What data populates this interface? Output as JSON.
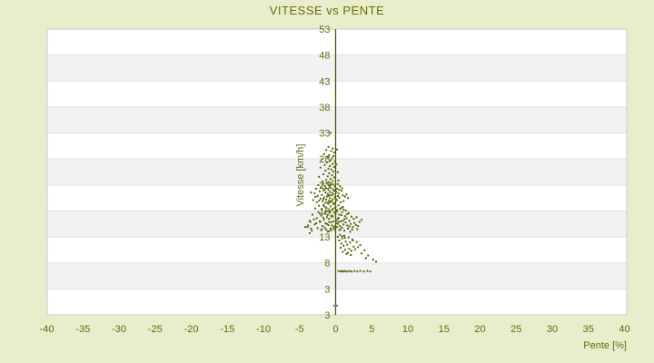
{
  "colors": {
    "background": "#e9edcb",
    "title_text": "#667104",
    "tick_text": "#5f6b10",
    "axis_line": "#4c5906",
    "point": "#5a660d",
    "teal_point": "#3d8f99",
    "band_light": "#ffffff",
    "band_dark": "#f2f2f2",
    "band_line": "#e2e2e2",
    "plot_border": "#d6dade"
  },
  "chart_data": {
    "type": "scatter",
    "title": "VITESSE vs PENTE",
    "xlabel": "Pente [%]",
    "ylabel": "Vitesse [km/h]",
    "xlim": [
      -40,
      40
    ],
    "ylim": [
      -2,
      53
    ],
    "grid": "horizontal-bands",
    "legend": "none",
    "x_ticks": [
      -40,
      -35,
      -30,
      -25,
      -20,
      -15,
      -10,
      -5,
      0,
      5,
      10,
      15,
      20,
      25,
      30,
      35,
      40
    ],
    "y_tick_labels": [
      "53",
      "48",
      "43",
      "38",
      "33",
      "28",
      "23",
      "18",
      "13",
      "8",
      "3",
      "3"
    ],
    "band_fill_order": [
      "#ffffff",
      "#f2f2f2"
    ],
    "series": [
      {
        "name": "vitesse-vs-pente",
        "color": "#5a660d",
        "marker": "square-2px",
        "points": [
          [
            -0.7,
            33.1
          ],
          [
            -1.0,
            30.4
          ],
          [
            -0.4,
            30.1
          ],
          [
            -1.3,
            29.8
          ],
          [
            -0.6,
            29.6
          ],
          [
            -0.2,
            29.3
          ],
          [
            -1.6,
            29.0
          ],
          [
            -0.9,
            28.8
          ],
          [
            -0.3,
            28.6
          ],
          [
            -1.1,
            28.4
          ],
          [
            -0.5,
            28.2
          ],
          [
            -1.9,
            28.0
          ],
          [
            -0.7,
            27.8
          ],
          [
            -0.1,
            27.6
          ],
          [
            -1.2,
            27.4
          ],
          [
            -0.4,
            27.1
          ],
          [
            -1.5,
            26.9
          ],
          [
            -0.8,
            26.7
          ],
          [
            -0.2,
            26.5
          ],
          [
            -1.0,
            26.2
          ],
          [
            -0.6,
            26.0
          ],
          [
            -1.4,
            25.8
          ],
          [
            -0.3,
            25.6
          ],
          [
            -0.9,
            25.3
          ],
          [
            -1.7,
            25.1
          ],
          [
            -0.5,
            24.9
          ],
          [
            -1.1,
            24.7
          ],
          [
            -0.2,
            24.5
          ],
          [
            -0.7,
            24.2
          ],
          [
            -1.3,
            24.0
          ],
          [
            -0.4,
            23.8
          ],
          [
            -0.9,
            23.6
          ],
          [
            0.2,
            29.9
          ],
          [
            0.1,
            27.0
          ],
          [
            0.3,
            25.5
          ],
          [
            -2.1,
            26.4
          ],
          [
            -2.3,
            24.6
          ],
          [
            0.4,
            23.9
          ],
          [
            -1.8,
            23.7
          ],
          [
            -1.2,
            23.4
          ],
          [
            -0.6,
            23.3
          ],
          [
            -1.8,
            23.2
          ],
          [
            -0.3,
            23.1
          ],
          [
            -2.4,
            23.0
          ],
          [
            -0.9,
            22.9
          ],
          [
            -1.5,
            22.8
          ],
          [
            -0.1,
            22.7
          ],
          [
            -2.0,
            22.6
          ],
          [
            -0.7,
            22.5
          ],
          [
            -1.3,
            22.4
          ],
          [
            -2.7,
            22.3
          ],
          [
            -0.4,
            22.2
          ],
          [
            -1.0,
            22.1
          ],
          [
            -1.7,
            22.0
          ],
          [
            -0.2,
            21.9
          ],
          [
            -2.2,
            21.8
          ],
          [
            -0.8,
            21.7
          ],
          [
            -1.4,
            21.6
          ],
          [
            -0.5,
            21.5
          ],
          [
            -2.9,
            21.4
          ],
          [
            -1.1,
            21.3
          ],
          [
            -0.3,
            21.2
          ],
          [
            -1.9,
            21.1
          ],
          [
            -0.6,
            21.0
          ],
          [
            -2.5,
            20.9
          ],
          [
            -1.2,
            20.8
          ],
          [
            -0.1,
            20.7
          ],
          [
            -1.6,
            20.6
          ],
          [
            -0.8,
            20.5
          ],
          [
            -2.1,
            20.4
          ],
          [
            -0.4,
            20.3
          ],
          [
            -1.3,
            20.2
          ],
          [
            -3.1,
            20.1
          ],
          [
            -0.9,
            20.0
          ],
          [
            -1.8,
            19.9
          ],
          [
            -0.5,
            19.8
          ],
          [
            -2.6,
            19.7
          ],
          [
            -1.1,
            19.6
          ],
          [
            -0.2,
            19.5
          ],
          [
            0.3,
            23.2
          ],
          [
            0.6,
            22.8
          ],
          [
            0.2,
            22.3
          ],
          [
            0.8,
            21.9
          ],
          [
            0.4,
            21.4
          ],
          [
            1.0,
            21.0
          ],
          [
            0.5,
            20.6
          ],
          [
            0.2,
            20.1
          ],
          [
            0.7,
            19.7
          ],
          [
            1.3,
            20.8
          ],
          [
            1.1,
            19.9
          ],
          [
            0.9,
            22.4
          ],
          [
            1.5,
            21.2
          ],
          [
            0.1,
            21.7
          ],
          [
            0.3,
            20.9
          ],
          [
            -0.7,
            23.0
          ],
          [
            -1.5,
            22.2
          ],
          [
            -0.9,
            21.1
          ],
          [
            -1.7,
            20.3
          ],
          [
            -0.6,
            19.9
          ],
          [
            -1.4,
            19.6
          ],
          [
            -2.3,
            20.0
          ],
          [
            -2.8,
            20.7
          ],
          [
            -0.2,
            22.0
          ],
          [
            -1.0,
            20.9
          ],
          [
            0.0,
            20.4
          ],
          [
            -3.4,
            21.6
          ],
          [
            -0.8,
            19.7
          ],
          [
            0.5,
            22.1
          ],
          [
            1.7,
            20.5
          ],
          [
            -1.0,
            19.4
          ],
          [
            -0.3,
            19.3
          ],
          [
            -1.7,
            19.2
          ],
          [
            0.4,
            19.1
          ],
          [
            -2.3,
            19.0
          ],
          [
            -0.7,
            18.9
          ],
          [
            1.0,
            18.8
          ],
          [
            -1.3,
            18.7
          ],
          [
            -0.1,
            18.6
          ],
          [
            -2.8,
            18.5
          ],
          [
            0.6,
            18.4
          ],
          [
            -1.9,
            18.3
          ],
          [
            -0.5,
            18.2
          ],
          [
            1.4,
            18.1
          ],
          [
            -1.1,
            18.0
          ],
          [
            0.2,
            17.9
          ],
          [
            -2.4,
            17.8
          ],
          [
            -0.8,
            17.7
          ],
          [
            1.8,
            17.6
          ],
          [
            -1.5,
            17.5
          ],
          [
            0.0,
            17.4
          ],
          [
            -3.2,
            17.3
          ],
          [
            0.8,
            17.2
          ],
          [
            -2.0,
            17.1
          ],
          [
            -0.4,
            17.0
          ],
          [
            2.2,
            16.9
          ],
          [
            -1.2,
            16.8
          ],
          [
            0.4,
            16.7
          ],
          [
            -2.6,
            16.6
          ],
          [
            -0.9,
            16.5
          ],
          [
            1.2,
            16.4
          ],
          [
            -1.6,
            16.3
          ],
          [
            0.1,
            16.2
          ],
          [
            -3.6,
            16.1
          ],
          [
            0.7,
            16.0
          ],
          [
            -2.1,
            15.9
          ],
          [
            -0.6,
            15.8
          ],
          [
            2.6,
            15.7
          ],
          [
            -1.4,
            15.6
          ],
          [
            0.3,
            15.5
          ],
          [
            -2.9,
            15.4
          ],
          [
            -1.0,
            15.3
          ],
          [
            1.6,
            15.2
          ],
          [
            -1.8,
            15.1
          ],
          [
            -0.2,
            15.0
          ],
          [
            -3.9,
            14.9
          ],
          [
            0.9,
            14.8
          ],
          [
            -2.5,
            14.7
          ],
          [
            -0.7,
            14.6
          ],
          [
            3.0,
            14.5
          ],
          [
            -1.3,
            14.4
          ],
          [
            0.5,
            14.3
          ],
          [
            -3.3,
            14.2
          ],
          [
            -0.9,
            14.1
          ],
          [
            2.0,
            14.0
          ],
          [
            -1.9,
            14.5
          ],
          [
            0.2,
            14.9
          ],
          [
            1.1,
            15.4
          ],
          [
            -0.5,
            16.9
          ],
          [
            1.9,
            16.1
          ],
          [
            0.6,
            15.1
          ],
          [
            -1.1,
            17.2
          ],
          [
            2.4,
            14.9
          ],
          [
            0.0,
            18.8
          ],
          [
            -0.3,
            16.0
          ],
          [
            1.3,
            17.0
          ],
          [
            -0.6,
            14.3
          ],
          [
            0.8,
            18.6
          ],
          [
            1.5,
            16.6
          ],
          [
            -2.2,
            16.0
          ],
          [
            -1.6,
            18.9
          ],
          [
            2.8,
            15.3
          ],
          [
            0.4,
            15.9
          ],
          [
            -0.1,
            14.4
          ],
          [
            1.0,
            16.1
          ],
          [
            3.3,
            15.9
          ],
          [
            3.6,
            16.3
          ],
          [
            2.1,
            15.5
          ],
          [
            1.7,
            14.6
          ],
          [
            0.9,
            17.8
          ],
          [
            -0.4,
            18.4
          ],
          [
            -1.2,
            15.5
          ],
          [
            -2.0,
            14.3
          ],
          [
            2.5,
            16.5
          ],
          [
            1.2,
            14.2
          ],
          [
            0.3,
            16.5
          ],
          [
            -0.8,
            18.0
          ],
          [
            1.1,
            18.3
          ],
          [
            -1.5,
            14.8
          ],
          [
            -0.2,
            17.7
          ],
          [
            0.5,
            17.3
          ],
          [
            2.3,
            14.4
          ],
          [
            -0.9,
            15.9
          ],
          [
            1.4,
            15.8
          ],
          [
            -2.7,
            15.6
          ],
          [
            -1.1,
            14.0
          ],
          [
            0.7,
            14.5
          ],
          [
            0.1,
            15.7
          ],
          [
            -0.5,
            15.2
          ],
          [
            1.9,
            15.0
          ],
          [
            -1.7,
            16.7
          ],
          [
            -3.0,
            16.4
          ],
          [
            -0.3,
            14.7
          ],
          [
            1.6,
            17.4
          ],
          [
            3.1,
            15.1
          ],
          [
            -1.4,
            17.9
          ],
          [
            2.9,
            16.8
          ],
          [
            0.2,
            18.2
          ],
          [
            -2.2,
            17.5
          ],
          [
            -0.6,
            17.1
          ],
          [
            -3.6,
            13.7
          ],
          [
            -3.4,
            14.6
          ],
          [
            -3.8,
            15.2
          ],
          [
            -4.2,
            14.9
          ],
          [
            -3.5,
            15.9
          ],
          [
            0.6,
            13.4
          ],
          [
            1.2,
            13.2
          ],
          [
            0.3,
            13.0
          ],
          [
            1.8,
            12.9
          ],
          [
            0.9,
            12.7
          ],
          [
            2.3,
            12.5
          ],
          [
            0.5,
            12.3
          ],
          [
            1.4,
            12.1
          ],
          [
            2.0,
            11.9
          ],
          [
            0.8,
            11.7
          ],
          [
            1.6,
            11.5
          ],
          [
            1.1,
            11.3
          ],
          [
            2.5,
            11.1
          ],
          [
            0.7,
            10.9
          ],
          [
            1.9,
            10.7
          ],
          [
            1.3,
            10.5
          ],
          [
            2.2,
            10.3
          ],
          [
            1.0,
            10.1
          ],
          [
            1.7,
            9.9
          ],
          [
            2.7,
            10.6
          ],
          [
            1.5,
            9.7
          ],
          [
            2.1,
            9.5
          ],
          [
            0.9,
            13.1
          ],
          [
            1.3,
            12.8
          ],
          [
            3.1,
            11.0
          ],
          [
            3.6,
            9.8
          ],
          [
            2.4,
            12.3
          ],
          [
            2.9,
            12.0
          ],
          [
            3.4,
            11.4
          ],
          [
            4.0,
            10.4
          ],
          [
            4.5,
            9.4
          ],
          [
            5.2,
            8.6
          ],
          [
            5.6,
            8.2
          ],
          [
            4.2,
            8.9
          ],
          [
            0.4,
            6.4
          ],
          [
            0.7,
            6.3
          ],
          [
            0.9,
            6.4
          ],
          [
            1.1,
            6.3
          ],
          [
            1.3,
            6.4
          ],
          [
            1.6,
            6.3
          ],
          [
            1.9,
            6.4
          ],
          [
            2.2,
            6.3
          ],
          [
            2.6,
            6.4
          ],
          [
            3.0,
            6.3
          ],
          [
            3.4,
            6.4
          ],
          [
            3.9,
            6.3
          ],
          [
            4.4,
            6.4
          ],
          [
            4.8,
            6.3
          ]
        ]
      },
      {
        "name": "single-teal-marker",
        "color": "#3d8f99",
        "marker": "dash-5x2px",
        "points": [
          [
            0.0,
            -0.3
          ]
        ]
      }
    ]
  }
}
